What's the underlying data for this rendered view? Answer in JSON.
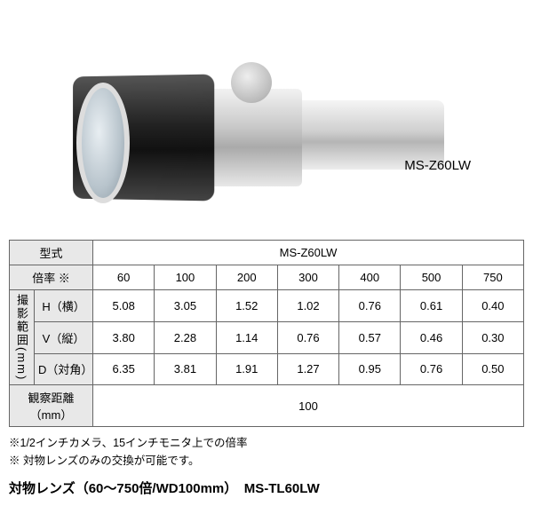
{
  "product": {
    "label": "MS-Z60LW"
  },
  "table": {
    "head_model_label": "型式",
    "model_value": "MS-Z60LW",
    "head_mag_label": "倍率 ※",
    "mags": [
      "60",
      "100",
      "200",
      "300",
      "400",
      "500",
      "750"
    ],
    "range_group_label": "撮影範囲(mm)",
    "h_label": "H（横）",
    "v_label": "V（縦）",
    "d_label": "D（対角）",
    "h_vals": [
      "5.08",
      "3.05",
      "1.52",
      "1.02",
      "0.76",
      "0.61",
      "0.40"
    ],
    "v_vals": [
      "3.80",
      "2.28",
      "1.14",
      "0.76",
      "0.57",
      "0.46",
      "0.30"
    ],
    "d_vals": [
      "6.35",
      "3.81",
      "1.91",
      "1.27",
      "0.95",
      "0.76",
      "0.50"
    ],
    "obs_label": "観察距離（mm）",
    "obs_value": "100",
    "colors": {
      "border": "#666666",
      "header_bg": "#e8e8e8",
      "cell_bg": "#ffffff"
    }
  },
  "notes": {
    "line1": "※1/2インチカメラ、15インチモニタ上での倍率",
    "line2": "※ 対物レンズのみの交換が可能です。"
  },
  "bottom": {
    "text": "対物レンズ（60～750倍/WD100mm）　MS-TL60LW"
  }
}
